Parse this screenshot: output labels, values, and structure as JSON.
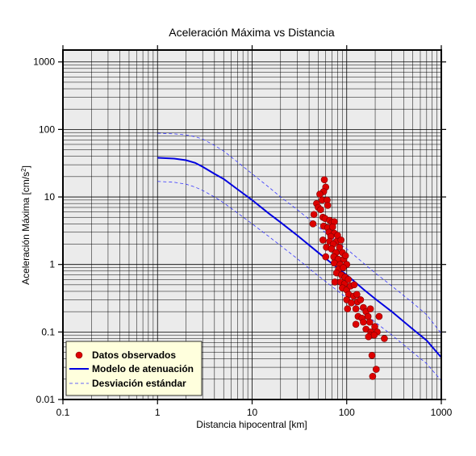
{
  "chart_data": {
    "type": "scatter",
    "title": "Aceleración Máxima vs Distancia",
    "xlabel": "Distancia hipocentral [km]",
    "ylabel": "Aceleración Máxima [cm/s",
    "ylabel_superscript": "2",
    "ylabel_suffix": "]",
    "xscale": "log",
    "yscale": "log",
    "xlim": [
      0.1,
      1000
    ],
    "ylim": [
      0.01,
      1500
    ],
    "x_ticks": [
      0.1,
      1,
      10,
      100,
      1000
    ],
    "x_tick_labels": [
      "0.1",
      "1",
      "10",
      "100",
      "1000"
    ],
    "y_ticks": [
      0.01,
      0.1,
      1,
      10,
      100,
      1000
    ],
    "y_tick_labels": [
      "0.01",
      "0.1",
      "1",
      "10",
      "100",
      "1000"
    ],
    "grid": true,
    "legend_position": "bottom-left",
    "colors": {
      "plot_background": "#ebebeb",
      "grid": "#000000",
      "points_fill": "#dd0000",
      "points_edge": "#7a0000",
      "model": "#0000e0",
      "deviation": "#3333ff",
      "legend_background": "#ffffdd"
    },
    "series": [
      {
        "name": "Datos observados",
        "kind": "points",
        "points": [
          [
            58,
            18
          ],
          [
            60,
            14
          ],
          [
            57,
            12
          ],
          [
            52,
            11
          ],
          [
            55,
            9
          ],
          [
            62,
            9
          ],
          [
            48,
            8
          ],
          [
            50,
            7
          ],
          [
            53,
            6.5
          ],
          [
            63,
            7.5
          ],
          [
            45,
            5.5
          ],
          [
            56,
            5
          ],
          [
            59,
            4.8
          ],
          [
            66,
            4.5
          ],
          [
            70,
            4.2
          ],
          [
            74,
            4.3
          ],
          [
            44,
            4
          ],
          [
            57,
            3.7
          ],
          [
            63,
            3.5
          ],
          [
            71,
            3.6
          ],
          [
            65,
            3
          ],
          [
            74,
            2.9
          ],
          [
            68,
            2.6
          ],
          [
            80,
            2.7
          ],
          [
            56,
            2.3
          ],
          [
            66,
            2.2
          ],
          [
            78,
            2.2
          ],
          [
            87,
            2.3
          ],
          [
            72,
            2
          ],
          [
            61,
            1.8
          ],
          [
            69,
            1.7
          ],
          [
            84,
            1.8
          ],
          [
            77,
            1.5
          ],
          [
            90,
            1.5
          ],
          [
            60,
            1.3
          ],
          [
            73,
            1.3
          ],
          [
            81,
            1.2
          ],
          [
            93,
            1.2
          ],
          [
            97,
            1.35
          ],
          [
            74,
            1.05
          ],
          [
            85,
            1
          ],
          [
            100,
            1
          ],
          [
            82,
            0.85
          ],
          [
            92,
            0.9
          ],
          [
            78,
            0.75
          ],
          [
            88,
            0.7
          ],
          [
            96,
            0.65
          ],
          [
            75,
            0.55
          ],
          [
            86,
            0.55
          ],
          [
            95,
            0.52
          ],
          [
            104,
            0.6
          ],
          [
            90,
            0.45
          ],
          [
            100,
            0.42
          ],
          [
            110,
            0.48
          ],
          [
            120,
            0.5
          ],
          [
            105,
            0.36
          ],
          [
            118,
            0.34
          ],
          [
            128,
            0.36
          ],
          [
            100,
            0.3
          ],
          [
            112,
            0.27
          ],
          [
            130,
            0.28
          ],
          [
            140,
            0.3
          ],
          [
            102,
            0.22
          ],
          [
            125,
            0.22
          ],
          [
            150,
            0.23
          ],
          [
            160,
            0.2
          ],
          [
            178,
            0.22
          ],
          [
            132,
            0.17
          ],
          [
            145,
            0.16
          ],
          [
            168,
            0.17
          ],
          [
            220,
            0.17
          ],
          [
            125,
            0.13
          ],
          [
            150,
            0.14
          ],
          [
            175,
            0.14
          ],
          [
            198,
            0.12
          ],
          [
            160,
            0.11
          ],
          [
            180,
            0.1
          ],
          [
            210,
            0.1
          ],
          [
            178,
            0.09
          ],
          [
            195,
            0.09
          ],
          [
            170,
            0.085
          ],
          [
            250,
            0.08
          ],
          [
            185,
            0.045
          ],
          [
            205,
            0.028
          ],
          [
            188,
            0.022
          ]
        ]
      },
      {
        "name": "Modelo de atenuación",
        "kind": "line",
        "style": "solid",
        "points": [
          [
            1,
            38
          ],
          [
            1.5,
            37
          ],
          [
            2,
            35
          ],
          [
            2.5,
            32
          ],
          [
            3,
            28
          ],
          [
            4,
            22
          ],
          [
            5,
            18.5
          ],
          [
            7,
            13
          ],
          [
            10,
            9
          ],
          [
            15,
            5.7
          ],
          [
            20,
            4.2
          ],
          [
            30,
            2.7
          ],
          [
            50,
            1.5
          ],
          [
            70,
            1.03
          ],
          [
            100,
            0.7
          ],
          [
            150,
            0.43
          ],
          [
            200,
            0.31
          ],
          [
            300,
            0.2
          ],
          [
            500,
            0.11
          ],
          [
            700,
            0.075
          ],
          [
            1000,
            0.042
          ]
        ]
      },
      {
        "name": "Desviación estándar",
        "kind": "line",
        "style": "dashed",
        "points": [
          [
            1,
            88
          ],
          [
            1.5,
            86
          ],
          [
            2,
            83
          ],
          [
            2.5,
            78
          ],
          [
            3,
            72
          ],
          [
            4,
            58
          ],
          [
            5,
            48
          ],
          [
            7,
            33
          ],
          [
            10,
            22
          ],
          [
            15,
            14
          ],
          [
            20,
            10
          ],
          [
            30,
            6.5
          ],
          [
            50,
            3.6
          ],
          [
            70,
            2.5
          ],
          [
            100,
            1.7
          ],
          [
            150,
            1.05
          ],
          [
            200,
            0.75
          ],
          [
            300,
            0.48
          ],
          [
            500,
            0.27
          ],
          [
            700,
            0.18
          ],
          [
            1000,
            0.095
          ]
        ]
      },
      {
        "kind": "line",
        "style": "dashed",
        "legend": false,
        "points": [
          [
            1,
            17
          ],
          [
            1.5,
            16.5
          ],
          [
            2,
            15.5
          ],
          [
            2.5,
            14
          ],
          [
            3,
            12.5
          ],
          [
            4,
            10
          ],
          [
            5,
            8.2
          ],
          [
            7,
            5.8
          ],
          [
            10,
            4
          ],
          [
            15,
            2.6
          ],
          [
            20,
            1.9
          ],
          [
            30,
            1.22
          ],
          [
            50,
            0.68
          ],
          [
            70,
            0.47
          ],
          [
            100,
            0.32
          ],
          [
            150,
            0.2
          ],
          [
            200,
            0.14
          ],
          [
            300,
            0.09
          ],
          [
            500,
            0.05
          ],
          [
            700,
            0.034
          ],
          [
            1000,
            0.019
          ]
        ]
      }
    ]
  }
}
